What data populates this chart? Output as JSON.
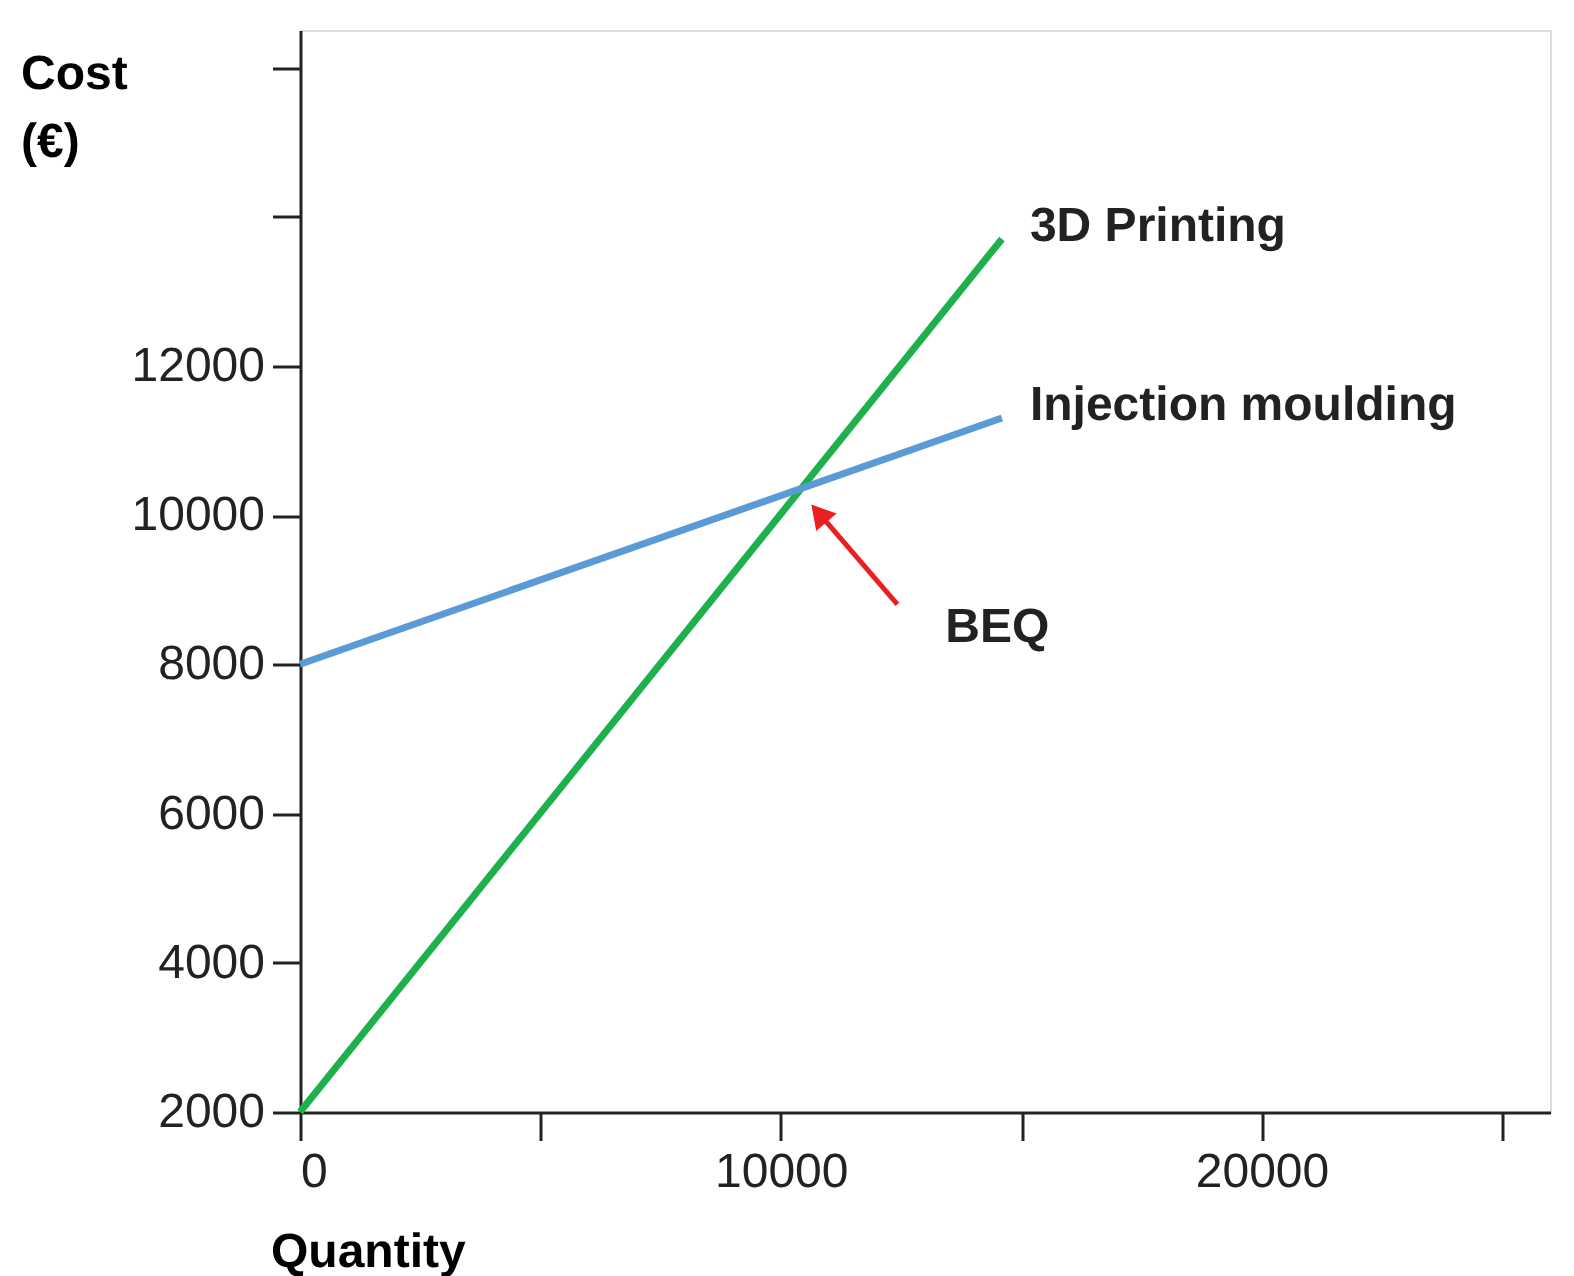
{
  "chart_data": {
    "type": "line",
    "xlabel": "Quantity",
    "ylabel": "Cost (€)",
    "xlim": [
      0,
      26000
    ],
    "ylim": [
      2000,
      16500
    ],
    "xticks": [
      0,
      {
        "value": 5000,
        "label": null
      },
      10000,
      {
        "value": 15000,
        "label": null
      },
      20000,
      {
        "value": 25000,
        "label": null
      }
    ],
    "yticks": [
      2000,
      4000,
      6000,
      8000,
      10000,
      12000,
      {
        "value": 14000,
        "label": null
      },
      {
        "value": 16000,
        "label": null
      }
    ],
    "x": [
      0,
      14600
    ],
    "series": [
      {
        "name": "3D Printing",
        "color": "#1db04b",
        "values": [
          2000,
          13700
        ]
      },
      {
        "name": "Injection moulding",
        "color": "#5b9bd5",
        "values": [
          8000,
          11300
        ]
      }
    ],
    "annotations": [
      "BEQ"
    ],
    "grid": false,
    "legend": false,
    "marker": "none",
    "line_style": "solid"
  }
}
